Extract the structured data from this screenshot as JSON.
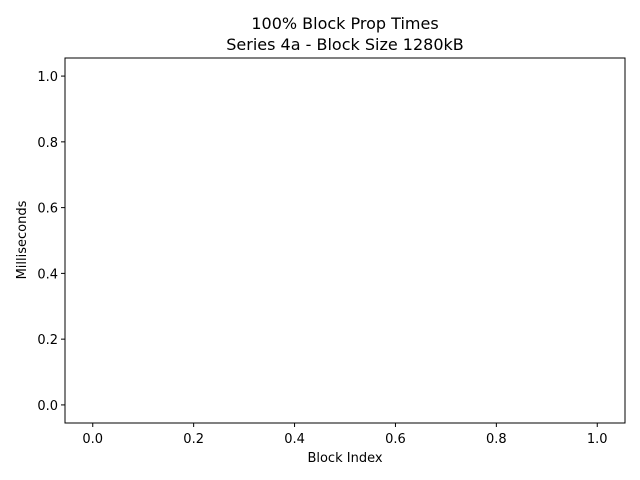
{
  "chart_data": {
    "type": "line",
    "title_line1": "100% Block Prop Times",
    "title_line2": "Series 4a - Block Size 1280kB",
    "xlabel": "Block Index",
    "ylabel": "Milliseconds",
    "xlim": [
      -0.055,
      1.055
    ],
    "ylim": [
      -0.055,
      1.055
    ],
    "xticks": [
      "0.0",
      "0.2",
      "0.4",
      "0.6",
      "0.8",
      "1.0"
    ],
    "yticks": [
      "0.0",
      "0.2",
      "0.4",
      "0.6",
      "0.8",
      "1.0"
    ],
    "grid": false,
    "series": []
  }
}
